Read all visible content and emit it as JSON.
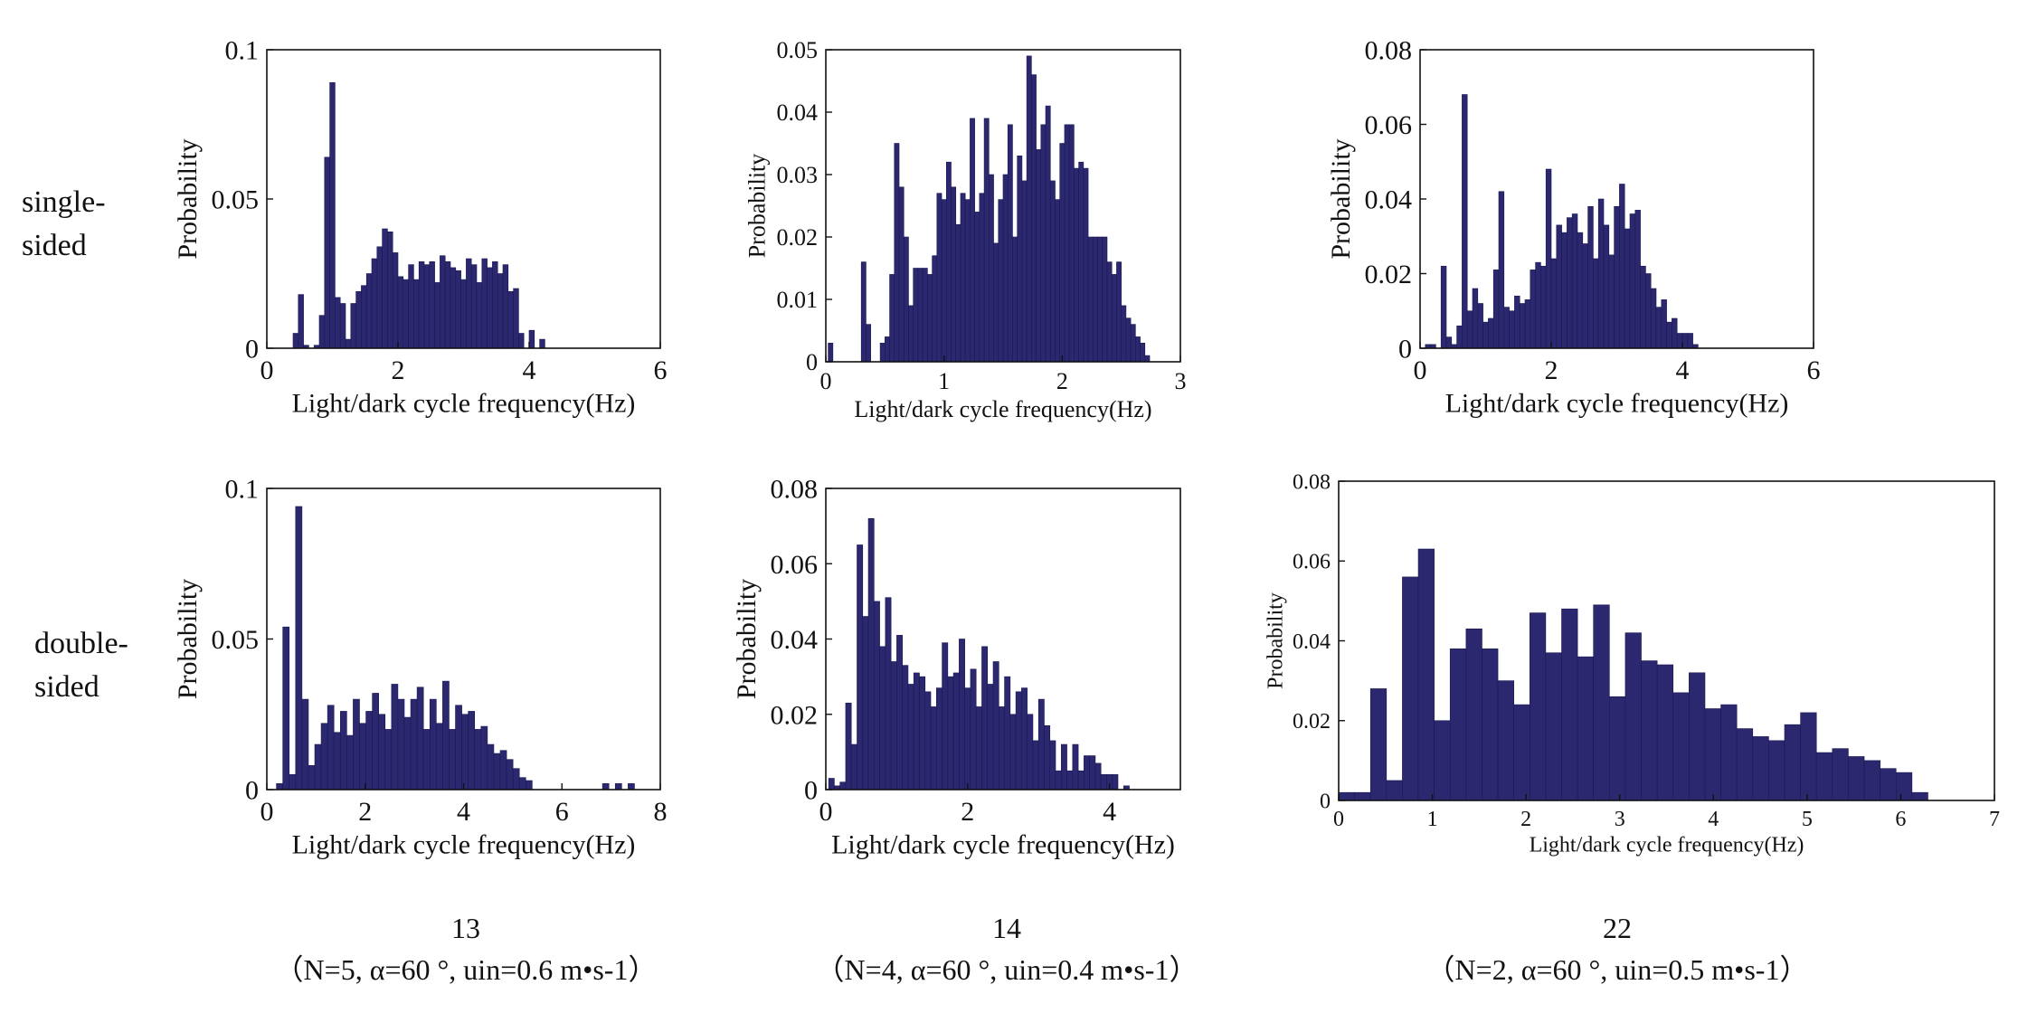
{
  "row_labels": [
    {
      "line1": "single-",
      "line2": "sided"
    },
    {
      "line1": "double-",
      "line2": "sided"
    }
  ],
  "captions": [
    {
      "number": "13",
      "params": "（N=5, α=60 °,  uin=0.6 m•s-1）"
    },
    {
      "number": "14",
      "params": "（N=4, α=60 °, uin=0.4 m•s-1）"
    },
    {
      "number": "22",
      "params": "（N=2, α=60 °, uin=0.5 m•s-1）"
    }
  ],
  "colors": {
    "bar_fill": "#2b2870",
    "bar_edge": "#1a1850",
    "axis": "#111111"
  },
  "chart_data": [
    {
      "type": "bar",
      "title": "",
      "xlabel": "Light/dark cycle frequency(Hz)",
      "ylabel": "Probability",
      "xlim": [
        0,
        6
      ],
      "ylim": [
        0,
        0.1
      ],
      "xticks": [
        0,
        2,
        4,
        6
      ],
      "yticks": [
        0,
        0.05,
        0.1
      ],
      "xtick_labels": [
        "0",
        "2",
        "4",
        "6"
      ],
      "ytick_labels": [
        "0",
        "0.05",
        "0.1"
      ],
      "bin_width": 0.08,
      "x": [
        0.44,
        0.52,
        0.6,
        0.76,
        0.84,
        0.92,
        1.0,
        1.08,
        1.16,
        1.24,
        1.32,
        1.4,
        1.48,
        1.56,
        1.64,
        1.72,
        1.8,
        1.88,
        1.96,
        2.04,
        2.12,
        2.2,
        2.28,
        2.36,
        2.44,
        2.52,
        2.6,
        2.68,
        2.76,
        2.84,
        2.92,
        3.0,
        3.08,
        3.16,
        3.24,
        3.32,
        3.4,
        3.48,
        3.56,
        3.64,
        3.72,
        3.8,
        3.88,
        4.04,
        4.2
      ],
      "values": [
        0.005,
        0.018,
        0.001,
        0.001,
        0.011,
        0.064,
        0.089,
        0.017,
        0.015,
        0.003,
        0.015,
        0.019,
        0.021,
        0.025,
        0.03,
        0.034,
        0.04,
        0.039,
        0.032,
        0.024,
        0.023,
        0.028,
        0.023,
        0.029,
        0.028,
        0.029,
        0.022,
        0.031,
        0.029,
        0.027,
        0.026,
        0.023,
        0.03,
        0.028,
        0.022,
        0.03,
        0.027,
        0.029,
        0.025,
        0.028,
        0.019,
        0.02,
        0.005,
        0.006,
        0.003
      ]
    },
    {
      "type": "bar",
      "title": "",
      "xlabel": "Light/dark cycle frequency(Hz)",
      "ylabel": "Probability",
      "xlim": [
        0,
        3
      ],
      "ylim": [
        0,
        0.05
      ],
      "xticks": [
        0,
        1,
        2,
        3
      ],
      "yticks": [
        0,
        0.01,
        0.02,
        0.03,
        0.04,
        0.05
      ],
      "xtick_labels": [
        "0",
        "1",
        "2",
        "3"
      ],
      "ytick_labels": [
        "0",
        "0.01",
        "0.02",
        "0.03",
        "0.04",
        "0.05"
      ],
      "bin_width": 0.04,
      "x": [
        0.04,
        0.32,
        0.36,
        0.48,
        0.52,
        0.56,
        0.6,
        0.64,
        0.68,
        0.72,
        0.76,
        0.8,
        0.84,
        0.88,
        0.92,
        0.96,
        1.0,
        1.04,
        1.08,
        1.12,
        1.16,
        1.2,
        1.24,
        1.28,
        1.32,
        1.36,
        1.4,
        1.44,
        1.48,
        1.52,
        1.56,
        1.6,
        1.64,
        1.68,
        1.72,
        1.76,
        1.8,
        1.84,
        1.88,
        1.92,
        1.96,
        2.0,
        2.04,
        2.08,
        2.12,
        2.16,
        2.2,
        2.24,
        2.28,
        2.32,
        2.36,
        2.4,
        2.44,
        2.48,
        2.52,
        2.56,
        2.6,
        2.64,
        2.68,
        2.72
      ],
      "values": [
        0.003,
        0.016,
        0.006,
        0.003,
        0.004,
        0.014,
        0.035,
        0.028,
        0.02,
        0.009,
        0.015,
        0.015,
        0.015,
        0.014,
        0.017,
        0.027,
        0.026,
        0.032,
        0.028,
        0.022,
        0.027,
        0.026,
        0.039,
        0.024,
        0.027,
        0.039,
        0.03,
        0.019,
        0.026,
        0.03,
        0.038,
        0.02,
        0.033,
        0.029,
        0.049,
        0.046,
        0.034,
        0.038,
        0.041,
        0.029,
        0.026,
        0.035,
        0.038,
        0.038,
        0.031,
        0.032,
        0.031,
        0.02,
        0.02,
        0.02,
        0.02,
        0.016,
        0.014,
        0.016,
        0.009,
        0.007,
        0.006,
        0.004,
        0.003,
        0.001
      ]
    },
    {
      "type": "bar",
      "title": "",
      "xlabel": "Light/dark cycle frequency(Hz)",
      "ylabel": "Probability",
      "xlim": [
        0,
        6
      ],
      "ylim": [
        0,
        0.08
      ],
      "xticks": [
        0,
        2,
        4,
        6
      ],
      "yticks": [
        0,
        0.02,
        0.04,
        0.06,
        0.08
      ],
      "xtick_labels": [
        "0",
        "2",
        "4",
        "6"
      ],
      "ytick_labels": [
        "0",
        "0.02",
        "0.04",
        "0.06",
        "0.08"
      ],
      "bin_width": 0.08,
      "x": [
        0.12,
        0.2,
        0.36,
        0.44,
        0.52,
        0.6,
        0.68,
        0.76,
        0.84,
        0.92,
        1.0,
        1.08,
        1.16,
        1.24,
        1.32,
        1.4,
        1.48,
        1.56,
        1.64,
        1.72,
        1.8,
        1.88,
        1.96,
        2.04,
        2.12,
        2.2,
        2.28,
        2.36,
        2.44,
        2.52,
        2.6,
        2.68,
        2.76,
        2.84,
        2.92,
        3.0,
        3.08,
        3.16,
        3.24,
        3.32,
        3.4,
        3.48,
        3.56,
        3.64,
        3.72,
        3.8,
        3.88,
        3.96,
        4.04,
        4.12,
        4.2
      ],
      "values": [
        0.001,
        0.001,
        0.022,
        0.003,
        0.001,
        0.006,
        0.068,
        0.01,
        0.016,
        0.012,
        0.007,
        0.008,
        0.021,
        0.042,
        0.011,
        0.01,
        0.014,
        0.012,
        0.013,
        0.021,
        0.023,
        0.022,
        0.048,
        0.024,
        0.033,
        0.031,
        0.035,
        0.036,
        0.031,
        0.028,
        0.038,
        0.024,
        0.04,
        0.033,
        0.025,
        0.038,
        0.044,
        0.032,
        0.036,
        0.037,
        0.022,
        0.02,
        0.016,
        0.011,
        0.013,
        0.007,
        0.008,
        0.004,
        0.004,
        0.004,
        0.001
      ]
    },
    {
      "type": "bar",
      "title": "",
      "xlabel": "Light/dark cycle frequency(Hz)",
      "ylabel": "Probability",
      "xlim": [
        0,
        8
      ],
      "ylim": [
        0,
        0.1
      ],
      "xticks": [
        0,
        2,
        4,
        6,
        8
      ],
      "yticks": [
        0,
        0.05,
        0.1
      ],
      "xtick_labels": [
        "0",
        "2",
        "4",
        "6",
        "8"
      ],
      "ytick_labels": [
        "0",
        "0.05",
        "0.1"
      ],
      "bin_width": 0.13,
      "x": [
        0.26,
        0.39,
        0.52,
        0.65,
        0.78,
        0.91,
        1.04,
        1.17,
        1.3,
        1.43,
        1.56,
        1.69,
        1.82,
        1.95,
        2.08,
        2.21,
        2.34,
        2.47,
        2.6,
        2.73,
        2.86,
        2.99,
        3.12,
        3.25,
        3.38,
        3.51,
        3.64,
        3.77,
        3.9,
        4.03,
        4.16,
        4.29,
        4.42,
        4.55,
        4.68,
        4.81,
        4.94,
        5.07,
        5.2,
        5.33,
        6.89,
        7.15,
        7.41
      ],
      "values": [
        0.002,
        0.054,
        0.005,
        0.094,
        0.03,
        0.008,
        0.015,
        0.022,
        0.028,
        0.019,
        0.026,
        0.018,
        0.03,
        0.022,
        0.026,
        0.032,
        0.025,
        0.02,
        0.035,
        0.03,
        0.024,
        0.03,
        0.034,
        0.02,
        0.03,
        0.022,
        0.036,
        0.02,
        0.028,
        0.025,
        0.026,
        0.02,
        0.021,
        0.015,
        0.012,
        0.013,
        0.01,
        0.007,
        0.004,
        0.003,
        0.002,
        0.002,
        0.002
      ]
    },
    {
      "type": "bar",
      "title": "",
      "xlabel": "Light/dark cycle frequency(Hz)",
      "ylabel": "Probability",
      "xlim": [
        0,
        5
      ],
      "ylim": [
        0,
        0.08
      ],
      "xticks": [
        0,
        2,
        4
      ],
      "yticks": [
        0,
        0.02,
        0.04,
        0.06,
        0.08
      ],
      "xtick_labels": [
        "0",
        "2",
        "4"
      ],
      "ytick_labels": [
        "0",
        "0.02",
        "0.04",
        "0.06",
        "0.08"
      ],
      "bin_width": 0.08,
      "x": [
        0.08,
        0.16,
        0.24,
        0.32,
        0.4,
        0.48,
        0.56,
        0.64,
        0.72,
        0.8,
        0.88,
        0.96,
        1.04,
        1.12,
        1.2,
        1.28,
        1.36,
        1.44,
        1.52,
        1.6,
        1.68,
        1.76,
        1.84,
        1.92,
        2.0,
        2.08,
        2.16,
        2.24,
        2.32,
        2.4,
        2.48,
        2.56,
        2.64,
        2.72,
        2.8,
        2.88,
        2.96,
        3.04,
        3.12,
        3.2,
        3.28,
        3.36,
        3.44,
        3.52,
        3.6,
        3.68,
        3.76,
        3.84,
        3.92,
        4.0,
        4.08,
        4.24
      ],
      "values": [
        0.003,
        0.001,
        0.002,
        0.023,
        0.012,
        0.065,
        0.046,
        0.072,
        0.05,
        0.038,
        0.051,
        0.034,
        0.041,
        0.033,
        0.028,
        0.031,
        0.03,
        0.026,
        0.022,
        0.027,
        0.039,
        0.03,
        0.031,
        0.04,
        0.027,
        0.032,
        0.022,
        0.038,
        0.028,
        0.034,
        0.022,
        0.03,
        0.02,
        0.026,
        0.027,
        0.02,
        0.013,
        0.024,
        0.017,
        0.013,
        0.005,
        0.012,
        0.005,
        0.012,
        0.005,
        0.009,
        0.009,
        0.007,
        0.004,
        0.004,
        0.004,
        0.001
      ]
    },
    {
      "type": "bar",
      "title": "",
      "xlabel": "Light/dark cycle frequency(Hz)",
      "ylabel": "Probability",
      "xlim": [
        0,
        7
      ],
      "ylim": [
        0,
        0.08
      ],
      "xticks": [
        0,
        1,
        2,
        3,
        4,
        5,
        6,
        7
      ],
      "yticks": [
        0,
        0.02,
        0.04,
        0.06,
        0.08
      ],
      "xtick_labels": [
        "0",
        "1",
        "2",
        "3",
        "4",
        "5",
        "6",
        "7"
      ],
      "ytick_labels": [
        "0",
        "0.02",
        "0.04",
        "0.06",
        "0.08"
      ],
      "bin_width": 0.17,
      "x": [
        0.085,
        0.255,
        0.425,
        0.595,
        0.765,
        0.935,
        1.105,
        1.275,
        1.445,
        1.615,
        1.785,
        1.955,
        2.125,
        2.295,
        2.465,
        2.635,
        2.805,
        2.975,
        3.145,
        3.315,
        3.485,
        3.655,
        3.825,
        3.995,
        4.165,
        4.335,
        4.505,
        4.675,
        4.845,
        5.015,
        5.185,
        5.355,
        5.525,
        5.695,
        5.865,
        6.035,
        6.205
      ],
      "values": [
        0.002,
        0.002,
        0.028,
        0.005,
        0.056,
        0.063,
        0.02,
        0.038,
        0.043,
        0.038,
        0.03,
        0.024,
        0.047,
        0.037,
        0.048,
        0.036,
        0.049,
        0.026,
        0.042,
        0.035,
        0.034,
        0.027,
        0.032,
        0.023,
        0.024,
        0.018,
        0.016,
        0.015,
        0.019,
        0.022,
        0.012,
        0.013,
        0.011,
        0.01,
        0.008,
        0.007,
        0.002
      ]
    }
  ]
}
